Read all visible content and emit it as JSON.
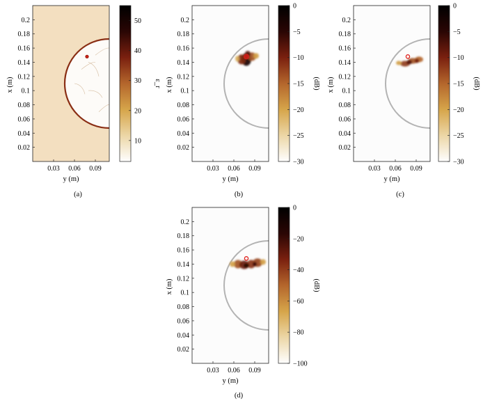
{
  "colors": {
    "background_a": "#f3dfc0",
    "dome_fill": "#fdfbf8",
    "dome_edge_a": "#8a2e14",
    "dome_edge_bcd": "#b3b3b3",
    "target": "#e0201c",
    "colormap": [
      "#fefefe",
      "#ecd6a6",
      "#d6a54a",
      "#b4662c",
      "#7a200f",
      "#2a0604",
      "#000000"
    ]
  },
  "chart_data": [
    {
      "type": "heatmap",
      "label": "(a)",
      "xlabel": "y (m)",
      "ylabel": "x (m)",
      "colorbar_label": "ε_r",
      "colorbar_ticks": [
        "10",
        "20",
        "30",
        "40",
        "50"
      ],
      "colorbar_range": [
        3,
        55
      ],
      "x_ticks": [
        "0.03",
        "0.06",
        "0.09"
      ],
      "y_ticks": [
        "0.02",
        "0.04",
        "0.06",
        "0.08",
        "0.1",
        "0.12",
        "0.14",
        "0.16",
        "0.18",
        "0.2"
      ],
      "xlim": [
        0,
        0.11
      ],
      "ylim": [
        0,
        0.22
      ],
      "dome": {
        "center_y": 0.11,
        "center_x": 0.11,
        "radius": 0.064
      },
      "target": {
        "y": 0.078,
        "x": 0.148
      },
      "grid": false
    },
    {
      "type": "heatmap",
      "label": "(b)",
      "xlabel": "y (m)",
      "ylabel": "x (m)",
      "colorbar_label": "(dB)",
      "colorbar_ticks": [
        "0",
        "−5",
        "−10",
        "−15",
        "−20",
        "−25",
        "−30"
      ],
      "colorbar_range": [
        -30,
        0
      ],
      "x_ticks": [
        "0.03",
        "0.06",
        "0.09"
      ],
      "y_ticks": [
        "0.02",
        "0.04",
        "0.06",
        "0.08",
        "0.1",
        "0.12",
        "0.14",
        "0.16",
        "0.18",
        "0.2"
      ],
      "xlim": [
        0,
        0.11
      ],
      "ylim": [
        0,
        0.22
      ],
      "dome": {
        "center_y": 0.11,
        "center_x": 0.11,
        "radius": 0.064
      },
      "target": {
        "y": 0.078,
        "x": 0.148
      },
      "grid": false
    },
    {
      "type": "heatmap",
      "label": "(c)",
      "xlabel": "y (m)",
      "ylabel": "x (m)",
      "colorbar_label": "(dB)",
      "colorbar_ticks": [
        "0",
        "−5",
        "−10",
        "−15",
        "−20",
        "−25",
        "−30"
      ],
      "colorbar_range": [
        -30,
        0
      ],
      "x_ticks": [
        "0.03",
        "0.06",
        "0.09"
      ],
      "y_ticks": [
        "0.02",
        "0.04",
        "0.06",
        "0.08",
        "0.1",
        "0.12",
        "0.14",
        "0.16",
        "0.18",
        "0.2"
      ],
      "xlim": [
        0,
        0.11
      ],
      "ylim": [
        0,
        0.22
      ],
      "dome": {
        "center_y": 0.11,
        "center_x": 0.11,
        "radius": 0.064
      },
      "target": {
        "y": 0.078,
        "x": 0.148
      },
      "grid": false
    },
    {
      "type": "heatmap",
      "label": "(d)",
      "xlabel": "y (m)",
      "ylabel": "x (m)",
      "colorbar_label": "(dB)",
      "colorbar_ticks": [
        "0",
        "−20",
        "−40",
        "−60",
        "−80",
        "−100"
      ],
      "colorbar_range": [
        -100,
        0
      ],
      "x_ticks": [
        "0.03",
        "0.06",
        "0.09"
      ],
      "y_ticks": [
        "0.02",
        "0.04",
        "0.06",
        "0.08",
        "0.1",
        "0.12",
        "0.14",
        "0.16",
        "0.18",
        "0.2"
      ],
      "xlim": [
        0,
        0.11
      ],
      "ylim": [
        0,
        0.22
      ],
      "dome": {
        "center_y": 0.11,
        "center_x": 0.11,
        "radius": 0.064
      },
      "target": {
        "y": 0.078,
        "x": 0.148
      },
      "grid": false
    }
  ]
}
